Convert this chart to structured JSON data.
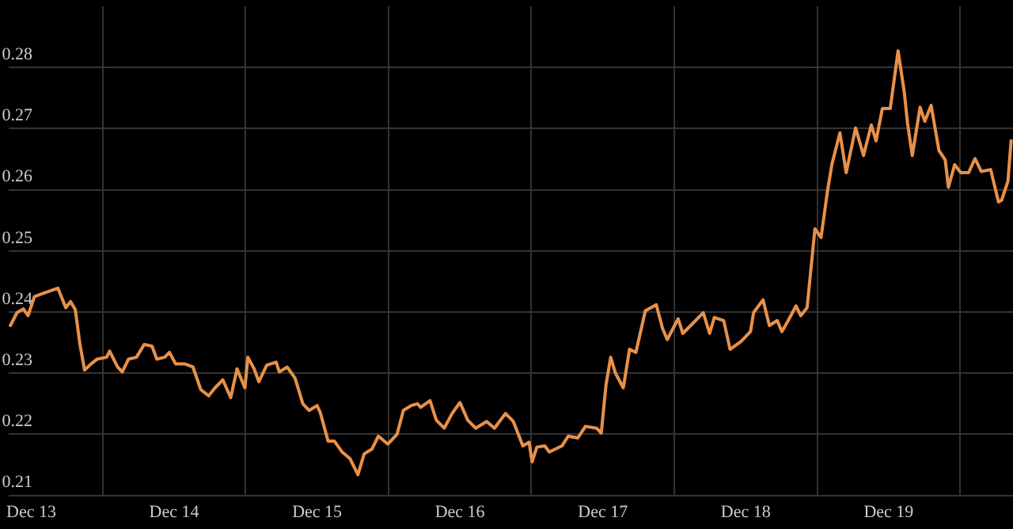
{
  "chart_data": {
    "type": "line",
    "x": [
      "--12-12T20:30",
      "--12-12T21:37",
      "--12-12T22:41",
      "--12-12T23:28",
      "--12-13T00:32",
      "--12-13T02:07",
      "--12-13T04:29",
      "--12-13T05:48",
      "--12-13T06:36",
      "--12-13T07:24",
      "--12-13T08:11",
      "--12-13T08:58",
      "--12-13T10:02",
      "--12-13T11:05",
      "--12-13T12:39",
      "--12-13T13:10",
      "--12-13T14:30",
      "--12-13T15:17",
      "--12-13T16:21",
      "--12-13T17:40",
      "--12-13T18:59",
      "--12-13T20:18",
      "--12-13T21:05",
      "--12-13T22:25",
      "--12-13T23:13",
      "--12-14T00:16",
      "--12-14T01:51",
      "--12-14T03:10",
      "--12-14T04:29",
      "--12-14T05:48",
      "--12-14T06:52",
      "--12-14T08:11",
      "--12-14T09:30",
      "--12-14T10:34",
      "--12-14T11:53",
      "--12-14T12:23",
      "--12-14T13:26",
      "--12-14T14:14",
      "--12-14T15:33",
      "--12-14T17:08",
      "--12-14T17:40",
      "--12-14T18:59",
      "--12-14T20:18",
      "--12-14T21:37",
      "--12-14T22:41",
      "--12-15T00:00",
      "--12-15T00:32",
      "--12-15T01:51",
      "--12-15T02:54",
      "--12-15T04:13",
      "--12-15T05:33",
      "--12-15T06:52",
      "--12-15T07:55",
      "--12-15T09:14",
      "--12-15T10:18",
      "--12-15T11:53",
      "--12-15T13:26",
      "--12-15T14:30",
      "--12-15T15:49",
      "--12-15T16:52",
      "--12-15T17:24",
      "--12-15T18:59",
      "--12-15T20:02",
      "--12-15T21:22",
      "--12-15T22:41",
      "--12-16T00:00",
      "--12-16T01:19",
      "--12-16T02:38",
      "--12-16T04:29",
      "--12-16T05:48",
      "--12-16T07:39",
      "--12-16T08:58",
      "--12-16T10:34",
      "--12-16T11:37",
      "--12-16T12:07",
      "--12-16T12:55",
      "--12-16T14:14",
      "--12-16T15:01",
      "--12-16T17:08",
      "--12-16T18:11",
      "--12-16T19:47",
      "--12-16T21:05",
      "--12-16T22:57",
      "--12-16T23:44",
      "--12-17T00:32",
      "--12-17T01:19",
      "--12-17T02:07",
      "--12-17T03:26",
      "--12-17T04:29",
      "--12-17T05:33",
      "--12-17T07:08",
      "--12-17T08:58",
      "--12-17T10:02",
      "--12-17T10:49",
      "--12-17T12:39",
      "--12-17T13:26",
      "--12-17T14:46",
      "--12-17T16:52",
      "--12-17T17:56",
      "--12-17T18:43",
      "--12-17T20:18",
      "--12-17T21:22",
      "--12-17T23:13",
      "--12-18T00:48",
      "--12-18T01:19",
      "--12-18T02:54",
      "--12-18T03:58",
      "--12-18T05:17",
      "--12-18T06:04",
      "--12-18T07:08",
      "--12-18T08:27",
      "--12-18T09:14",
      "--12-18T10:18",
      "--12-18T11:37",
      "--12-18T12:39",
      "--12-18T13:42",
      "--12-18T14:30",
      "--12-18T15:49",
      "--12-18T16:52",
      "--12-18T18:27",
      "--12-18T19:47",
      "--12-18T21:05",
      "--12-18T21:53",
      "--12-18T22:57",
      "--12-19T00:16",
      "--12-19T01:35",
      "--12-19T02:38",
      "--12-19T03:10",
      "--12-19T03:58",
      "--12-19T05:17",
      "--12-19T06:04",
      "--12-19T07:08",
      "--12-19T08:27",
      "--12-19T09:30",
      "--12-19T10:02",
      "--12-19T11:05",
      "--12-19T12:07",
      "--12-19T13:26",
      "--12-19T14:30",
      "--12-19T15:33",
      "--12-19T17:08",
      "--12-19T18:27",
      "--12-19T18:59",
      "--12-19T20:02",
      "--12-19T20:34"
    ],
    "series": [
      {
        "color": "#e8914a",
        "values": [
          0.2378,
          0.2399,
          0.2405,
          0.2394,
          0.2425,
          0.2431,
          0.2439,
          0.2407,
          0.2417,
          0.2404,
          0.2347,
          0.2305,
          0.2315,
          0.2323,
          0.2326,
          0.2336,
          0.231,
          0.2302,
          0.2323,
          0.2326,
          0.2347,
          0.2344,
          0.2323,
          0.2326,
          0.2334,
          0.2315,
          0.2315,
          0.231,
          0.2273,
          0.2263,
          0.2276,
          0.2289,
          0.226,
          0.2307,
          0.2276,
          0.2326,
          0.2307,
          0.2286,
          0.2313,
          0.2318,
          0.2302,
          0.231,
          0.2292,
          0.225,
          0.2239,
          0.2247,
          0.2236,
          0.2189,
          0.2189,
          0.2171,
          0.216,
          0.2134,
          0.2168,
          0.2176,
          0.2197,
          0.2184,
          0.22,
          0.2239,
          0.2247,
          0.225,
          0.2244,
          0.2255,
          0.2223,
          0.221,
          0.2234,
          0.2252,
          0.2223,
          0.221,
          0.2221,
          0.221,
          0.2234,
          0.2221,
          0.2181,
          0.2187,
          0.2155,
          0.2179,
          0.2181,
          0.2171,
          0.2181,
          0.2197,
          0.2194,
          0.2213,
          0.221,
          0.2202,
          0.2281,
          0.2326,
          0.23,
          0.2276,
          0.2339,
          0.2334,
          0.2402,
          0.2412,
          0.2373,
          0.2355,
          0.2389,
          0.2365,
          0.2378,
          0.2399,
          0.2365,
          0.2391,
          0.2386,
          0.2339,
          0.2352,
          0.2368,
          0.2399,
          0.242,
          0.2378,
          0.2386,
          0.2368,
          0.2386,
          0.241,
          0.2394,
          0.2407,
          0.2536,
          0.2522,
          0.2596,
          0.2643,
          0.2693,
          0.2628,
          0.2701,
          0.2656,
          0.2706,
          0.268,
          0.2733,
          0.2733,
          0.2827,
          0.2759,
          0.2709,
          0.2656,
          0.2735,
          0.2712,
          0.2738,
          0.2664,
          0.2649,
          0.2604,
          0.2641,
          0.2628,
          0.2628,
          0.2651,
          0.263,
          0.2633,
          0.258,
          0.2583,
          0.2614,
          0.268
        ]
      }
    ],
    "xlim": [
      "--12-12T20:10",
      "--12-19T20:53"
    ],
    "xticks": [
      {
        "value": "--12-13",
        "label": "Dec 13"
      },
      {
        "value": "--12-13T12:00",
        "label": null
      },
      {
        "value": "--12-14",
        "label": "Dec 14"
      },
      {
        "value": "--12-14T12:00",
        "label": null
      },
      {
        "value": "--12-15",
        "label": "Dec 15"
      },
      {
        "value": "--12-15T12:00",
        "label": null
      },
      {
        "value": "--12-16",
        "label": "Dec 16"
      },
      {
        "value": "--12-16T12:00",
        "label": null
      },
      {
        "value": "--12-17",
        "label": "Dec 17"
      },
      {
        "value": "--12-17T12:00",
        "label": null
      },
      {
        "value": "--12-18",
        "label": "Dec 18"
      },
      {
        "value": "--12-18T12:00",
        "label": null
      },
      {
        "value": "--12-19",
        "label": "Dec 19"
      },
      {
        "value": "--12-19T12:00",
        "label": null
      }
    ],
    "ylim": [
      0.21,
      0.29
    ],
    "yticks": [
      0.21,
      0.22,
      0.23,
      0.24,
      0.25,
      0.26,
      0.27,
      0.28
    ],
    "grid": true
  }
}
